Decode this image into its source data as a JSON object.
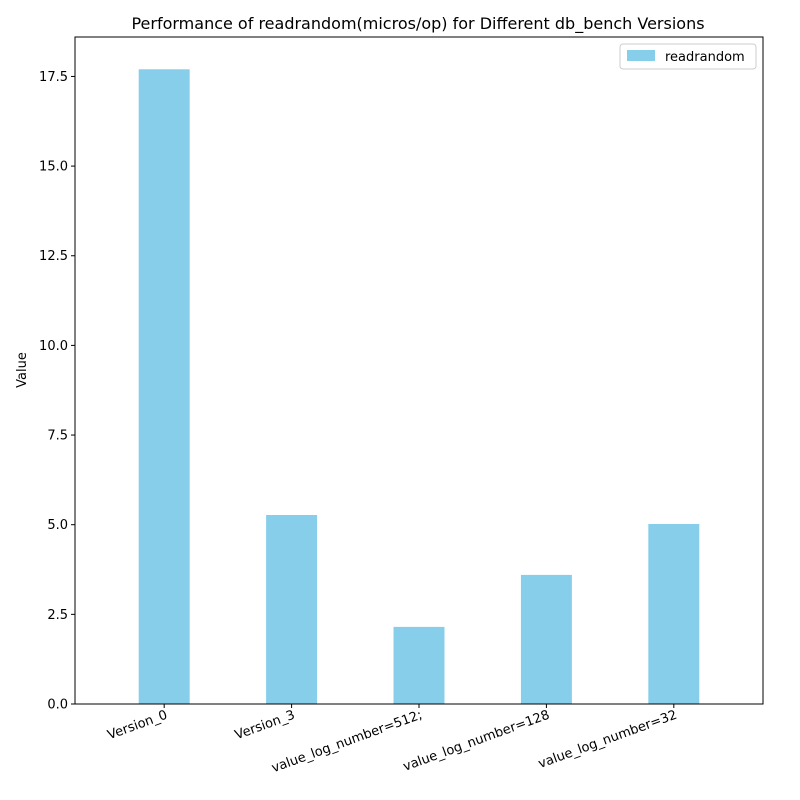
{
  "chart_data": {
    "type": "bar",
    "title": "Performance of readrandom(micros/op) for Different db_bench Versions",
    "xlabel": "",
    "ylabel": "Value",
    "categories": [
      "Version_0",
      "Version_3",
      "value_log_number=512;",
      "value_log_number=128",
      "value_log_number=32"
    ],
    "series": [
      {
        "name": "readrandom",
        "values": [
          17.7,
          5.27,
          2.15,
          3.6,
          5.02
        ],
        "color": "#87ceeb"
      }
    ],
    "ylim": [
      0,
      18.6
    ],
    "yticks": [
      "0.0",
      "2.5",
      "5.0",
      "7.5",
      "10.0",
      "12.5",
      "15.0",
      "17.5"
    ],
    "ytick_values": [
      0,
      2.5,
      5,
      7.5,
      10,
      12.5,
      15,
      17.5
    ],
    "grid": false,
    "legend_position": "top-right"
  }
}
